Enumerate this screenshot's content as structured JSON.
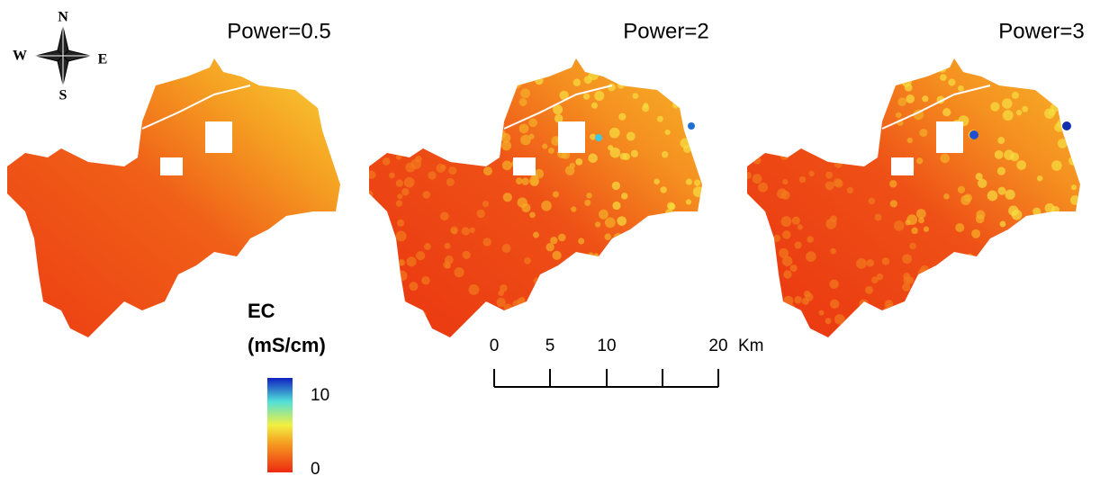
{
  "panels": [
    {
      "title": "Power=0.5"
    },
    {
      "title": "Power=2"
    },
    {
      "title": "Power=3"
    }
  ],
  "compass": {
    "north": "N",
    "south": "S",
    "east": "E",
    "west": "W"
  },
  "legend": {
    "title_line1": "EC",
    "title_line2": "(mS/cm)",
    "max_label": "10",
    "min_label": "0"
  },
  "scale_bar": {
    "labels": [
      "0",
      "5",
      "10",
      "20"
    ],
    "unit": "Km"
  }
}
